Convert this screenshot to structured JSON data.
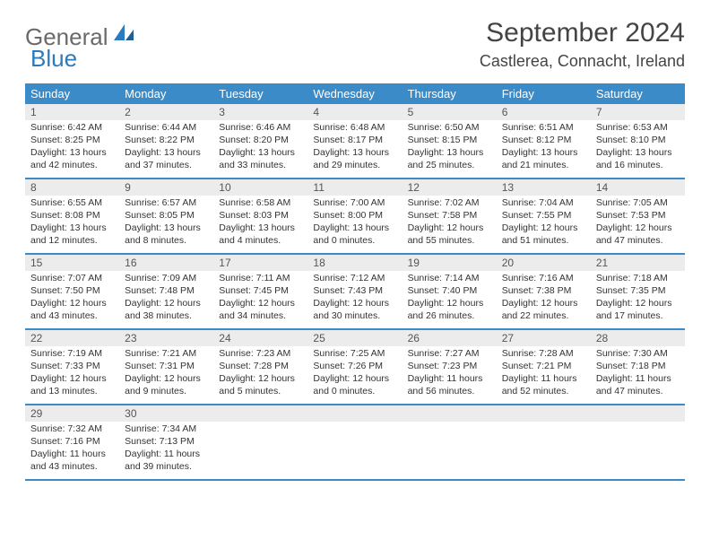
{
  "brand": {
    "part1": "General",
    "part2": "Blue"
  },
  "title": "September 2024",
  "location": "Castlerea, Connacht, Ireland",
  "weekdays": [
    "Sunday",
    "Monday",
    "Tuesday",
    "Wednesday",
    "Thursday",
    "Friday",
    "Saturday"
  ],
  "colors": {
    "header_bg": "#3b8bc9",
    "header_text": "#ffffff",
    "daynum_bg": "#ececec",
    "text": "#333333",
    "rule": "#3b8bc9"
  },
  "weeks": [
    [
      {
        "n": "1",
        "sr": "Sunrise: 6:42 AM",
        "ss": "Sunset: 8:25 PM",
        "d1": "Daylight: 13 hours",
        "d2": "and 42 minutes."
      },
      {
        "n": "2",
        "sr": "Sunrise: 6:44 AM",
        "ss": "Sunset: 8:22 PM",
        "d1": "Daylight: 13 hours",
        "d2": "and 37 minutes."
      },
      {
        "n": "3",
        "sr": "Sunrise: 6:46 AM",
        "ss": "Sunset: 8:20 PM",
        "d1": "Daylight: 13 hours",
        "d2": "and 33 minutes."
      },
      {
        "n": "4",
        "sr": "Sunrise: 6:48 AM",
        "ss": "Sunset: 8:17 PM",
        "d1": "Daylight: 13 hours",
        "d2": "and 29 minutes."
      },
      {
        "n": "5",
        "sr": "Sunrise: 6:50 AM",
        "ss": "Sunset: 8:15 PM",
        "d1": "Daylight: 13 hours",
        "d2": "and 25 minutes."
      },
      {
        "n": "6",
        "sr": "Sunrise: 6:51 AM",
        "ss": "Sunset: 8:12 PM",
        "d1": "Daylight: 13 hours",
        "d2": "and 21 minutes."
      },
      {
        "n": "7",
        "sr": "Sunrise: 6:53 AM",
        "ss": "Sunset: 8:10 PM",
        "d1": "Daylight: 13 hours",
        "d2": "and 16 minutes."
      }
    ],
    [
      {
        "n": "8",
        "sr": "Sunrise: 6:55 AM",
        "ss": "Sunset: 8:08 PM",
        "d1": "Daylight: 13 hours",
        "d2": "and 12 minutes."
      },
      {
        "n": "9",
        "sr": "Sunrise: 6:57 AM",
        "ss": "Sunset: 8:05 PM",
        "d1": "Daylight: 13 hours",
        "d2": "and 8 minutes."
      },
      {
        "n": "10",
        "sr": "Sunrise: 6:58 AM",
        "ss": "Sunset: 8:03 PM",
        "d1": "Daylight: 13 hours",
        "d2": "and 4 minutes."
      },
      {
        "n": "11",
        "sr": "Sunrise: 7:00 AM",
        "ss": "Sunset: 8:00 PM",
        "d1": "Daylight: 13 hours",
        "d2": "and 0 minutes."
      },
      {
        "n": "12",
        "sr": "Sunrise: 7:02 AM",
        "ss": "Sunset: 7:58 PM",
        "d1": "Daylight: 12 hours",
        "d2": "and 55 minutes."
      },
      {
        "n": "13",
        "sr": "Sunrise: 7:04 AM",
        "ss": "Sunset: 7:55 PM",
        "d1": "Daylight: 12 hours",
        "d2": "and 51 minutes."
      },
      {
        "n": "14",
        "sr": "Sunrise: 7:05 AM",
        "ss": "Sunset: 7:53 PM",
        "d1": "Daylight: 12 hours",
        "d2": "and 47 minutes."
      }
    ],
    [
      {
        "n": "15",
        "sr": "Sunrise: 7:07 AM",
        "ss": "Sunset: 7:50 PM",
        "d1": "Daylight: 12 hours",
        "d2": "and 43 minutes."
      },
      {
        "n": "16",
        "sr": "Sunrise: 7:09 AM",
        "ss": "Sunset: 7:48 PM",
        "d1": "Daylight: 12 hours",
        "d2": "and 38 minutes."
      },
      {
        "n": "17",
        "sr": "Sunrise: 7:11 AM",
        "ss": "Sunset: 7:45 PM",
        "d1": "Daylight: 12 hours",
        "d2": "and 34 minutes."
      },
      {
        "n": "18",
        "sr": "Sunrise: 7:12 AM",
        "ss": "Sunset: 7:43 PM",
        "d1": "Daylight: 12 hours",
        "d2": "and 30 minutes."
      },
      {
        "n": "19",
        "sr": "Sunrise: 7:14 AM",
        "ss": "Sunset: 7:40 PM",
        "d1": "Daylight: 12 hours",
        "d2": "and 26 minutes."
      },
      {
        "n": "20",
        "sr": "Sunrise: 7:16 AM",
        "ss": "Sunset: 7:38 PM",
        "d1": "Daylight: 12 hours",
        "d2": "and 22 minutes."
      },
      {
        "n": "21",
        "sr": "Sunrise: 7:18 AM",
        "ss": "Sunset: 7:35 PM",
        "d1": "Daylight: 12 hours",
        "d2": "and 17 minutes."
      }
    ],
    [
      {
        "n": "22",
        "sr": "Sunrise: 7:19 AM",
        "ss": "Sunset: 7:33 PM",
        "d1": "Daylight: 12 hours",
        "d2": "and 13 minutes."
      },
      {
        "n": "23",
        "sr": "Sunrise: 7:21 AM",
        "ss": "Sunset: 7:31 PM",
        "d1": "Daylight: 12 hours",
        "d2": "and 9 minutes."
      },
      {
        "n": "24",
        "sr": "Sunrise: 7:23 AM",
        "ss": "Sunset: 7:28 PM",
        "d1": "Daylight: 12 hours",
        "d2": "and 5 minutes."
      },
      {
        "n": "25",
        "sr": "Sunrise: 7:25 AM",
        "ss": "Sunset: 7:26 PM",
        "d1": "Daylight: 12 hours",
        "d2": "and 0 minutes."
      },
      {
        "n": "26",
        "sr": "Sunrise: 7:27 AM",
        "ss": "Sunset: 7:23 PM",
        "d1": "Daylight: 11 hours",
        "d2": "and 56 minutes."
      },
      {
        "n": "27",
        "sr": "Sunrise: 7:28 AM",
        "ss": "Sunset: 7:21 PM",
        "d1": "Daylight: 11 hours",
        "d2": "and 52 minutes."
      },
      {
        "n": "28",
        "sr": "Sunrise: 7:30 AM",
        "ss": "Sunset: 7:18 PM",
        "d1": "Daylight: 11 hours",
        "d2": "and 47 minutes."
      }
    ],
    [
      {
        "n": "29",
        "sr": "Sunrise: 7:32 AM",
        "ss": "Sunset: 7:16 PM",
        "d1": "Daylight: 11 hours",
        "d2": "and 43 minutes."
      },
      {
        "n": "30",
        "sr": "Sunrise: 7:34 AM",
        "ss": "Sunset: 7:13 PM",
        "d1": "Daylight: 11 hours",
        "d2": "and 39 minutes."
      },
      {
        "n": "",
        "sr": "",
        "ss": "",
        "d1": "",
        "d2": ""
      },
      {
        "n": "",
        "sr": "",
        "ss": "",
        "d1": "",
        "d2": ""
      },
      {
        "n": "",
        "sr": "",
        "ss": "",
        "d1": "",
        "d2": ""
      },
      {
        "n": "",
        "sr": "",
        "ss": "",
        "d1": "",
        "d2": ""
      },
      {
        "n": "",
        "sr": "",
        "ss": "",
        "d1": "",
        "d2": ""
      }
    ]
  ]
}
